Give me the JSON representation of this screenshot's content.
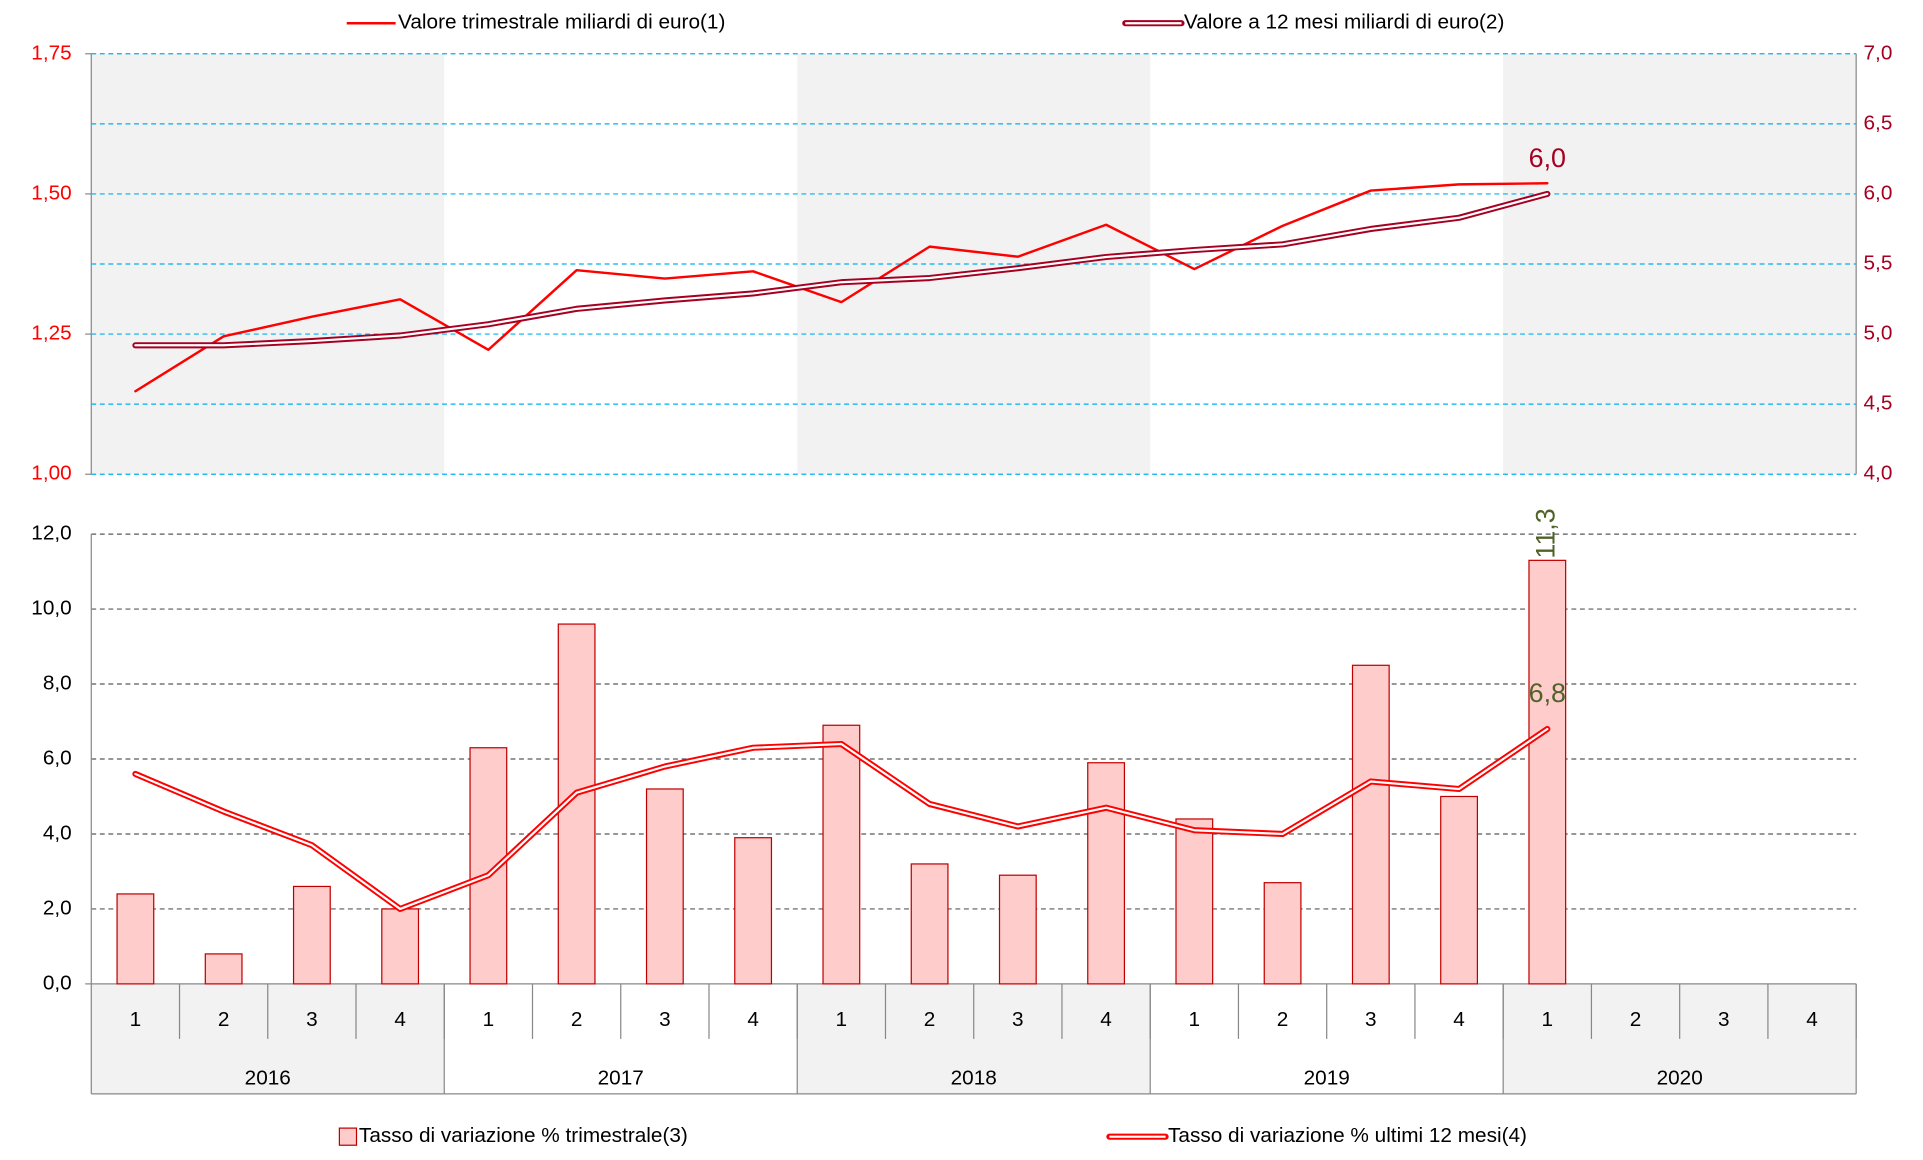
{
  "chart_data": [
    {
      "type": "line",
      "series": [
        {
          "name": "Valore trimestrale miliardi di euro(1)",
          "color": "#ff0000",
          "values": [
            1.148,
            1.246,
            1.281,
            1.312,
            1.222,
            1.364,
            1.349,
            1.362,
            1.307,
            1.406,
            1.388,
            1.445,
            1.366,
            1.443,
            1.506,
            1.517,
            1.519,
            null,
            null,
            null
          ]
        },
        {
          "name": "Valore a 12 mesi miliardi di euro(2)",
          "color": "#a50021",
          "axis": "y2",
          "values": [
            4.92,
            4.92,
            4.95,
            4.99,
            5.07,
            5.18,
            5.24,
            5.29,
            5.37,
            5.4,
            5.47,
            5.55,
            5.6,
            5.64,
            5.75,
            5.83,
            6.0,
            null,
            null,
            null
          ],
          "value_labels": [
            null,
            null,
            null,
            null,
            null,
            null,
            null,
            null,
            null,
            null,
            null,
            null,
            null,
            null,
            null,
            null,
            "6,0",
            null,
            null,
            null
          ]
        }
      ],
      "ylim": [
        1.0,
        1.75
      ],
      "yticks": [
        {
          "value": 1.0,
          "label": "1,00"
        },
        {
          "value": 1.25,
          "label": "1,25"
        },
        {
          "value": 1.5,
          "label": "1,50"
        },
        {
          "value": 1.75,
          "label": "1,75"
        }
      ],
      "y2lim": [
        4.0,
        7.0
      ],
      "y2ticks": [
        {
          "value": 4.0,
          "label": "4,0"
        },
        {
          "value": 4.5,
          "label": "4,5"
        },
        {
          "value": 5.0,
          "label": "5,0"
        },
        {
          "value": 5.5,
          "label": "5,5"
        },
        {
          "value": 6.0,
          "label": "6,0"
        },
        {
          "value": 6.5,
          "label": "6,5"
        },
        {
          "value": 7.0,
          "label": "7,0"
        }
      ],
      "grid": true,
      "legend": "top"
    },
    {
      "type": "bar",
      "categories": [
        "1",
        "2",
        "3",
        "4",
        "1",
        "2",
        "3",
        "4",
        "1",
        "2",
        "3",
        "4",
        "1",
        "2",
        "3",
        "4",
        "1",
        "2",
        "3",
        "4"
      ],
      "category_groups": [
        "2016",
        "2017",
        "2018",
        "2019",
        "2020"
      ],
      "series": [
        {
          "name": "Tasso di variazione % trimestrale(3)",
          "type": "bar",
          "color": "#ffcccc",
          "values": [
            2.4,
            0.8,
            2.6,
            2.0,
            6.3,
            9.6,
            5.2,
            3.9,
            6.9,
            3.2,
            2.9,
            5.9,
            4.4,
            2.7,
            8.5,
            5.0,
            11.3,
            null,
            null,
            null
          ],
          "value_labels": [
            null,
            null,
            null,
            null,
            null,
            null,
            null,
            null,
            null,
            null,
            null,
            null,
            null,
            null,
            null,
            null,
            "11,3",
            null,
            null,
            null
          ]
        },
        {
          "name": "Tasso di variazione % ultimi 12 mesi(4)",
          "type": "line",
          "color": "#ff0000",
          "values": [
            5.6,
            4.6,
            3.7,
            2.0,
            2.9,
            5.1,
            5.8,
            6.3,
            6.4,
            4.8,
            4.2,
            4.7,
            4.1,
            4.0,
            5.4,
            5.2,
            6.8,
            null,
            null,
            null
          ],
          "value_labels": [
            null,
            null,
            null,
            null,
            null,
            null,
            null,
            null,
            null,
            null,
            null,
            null,
            null,
            null,
            null,
            null,
            "6,8",
            null,
            null,
            null
          ]
        }
      ],
      "ylim": [
        0,
        12
      ],
      "yticks": [
        {
          "value": 0,
          "label": "0,0"
        },
        {
          "value": 2,
          "label": "2,0"
        },
        {
          "value": 4,
          "label": "4,0"
        },
        {
          "value": 6,
          "label": "6,0"
        },
        {
          "value": 8,
          "label": "8,0"
        },
        {
          "value": 10,
          "label": "10,0"
        },
        {
          "value": 12,
          "label": "12,0"
        }
      ],
      "grid": true,
      "legend": "bottom"
    }
  ]
}
